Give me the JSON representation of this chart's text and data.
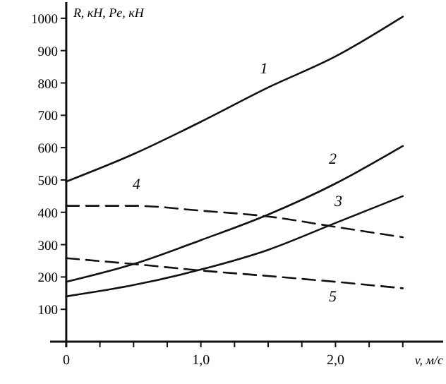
{
  "chart_data": {
    "type": "line",
    "xlabel": "v, м/с",
    "ylabel": "R, кН,  Pe, кН",
    "x": [
      0,
      0.5,
      1.0,
      1.5,
      2.0,
      2.5
    ],
    "series": [
      {
        "name": "1",
        "color": "#111111",
        "line_style": "solid",
        "values": [
          495,
          580,
          680,
          786,
          882,
          1005
        ]
      },
      {
        "name": "2",
        "color": "#111111",
        "line_style": "solid",
        "values": [
          185,
          240,
          314,
          393,
          489,
          605
        ]
      },
      {
        "name": "3",
        "color": "#111111",
        "line_style": "solid",
        "values": [
          140,
          175,
          223,
          284,
          367,
          450
        ]
      },
      {
        "name": "4",
        "color": "#111111",
        "line_style": "dashed",
        "values": [
          420,
          420,
          405,
          387,
          355,
          323
        ]
      },
      {
        "name": "5",
        "color": "#111111",
        "line_style": "dashed",
        "values": [
          258,
          240,
          220,
          203,
          185,
          165
        ]
      }
    ],
    "xlim": [
      -0.12,
      2.8
    ],
    "ylim": [
      0,
      1050
    ],
    "xticks": [
      {
        "value": 0,
        "label": "0"
      },
      {
        "value": 0.25,
        "label": null
      },
      {
        "value": 0.5,
        "label": null
      },
      {
        "value": 0.75,
        "label": null
      },
      {
        "value": 1,
        "label": "1,0"
      },
      {
        "value": 1.25,
        "label": null
      },
      {
        "value": 1.5,
        "label": null
      },
      {
        "value": 1.75,
        "label": null
      },
      {
        "value": 2,
        "label": "2,0"
      },
      {
        "value": 2.25,
        "label": null
      },
      {
        "value": 2.5,
        "label": null
      }
    ],
    "yticks": [
      100,
      200,
      300,
      400,
      500,
      600,
      700,
      800,
      900,
      1000
    ],
    "grid": false
  }
}
